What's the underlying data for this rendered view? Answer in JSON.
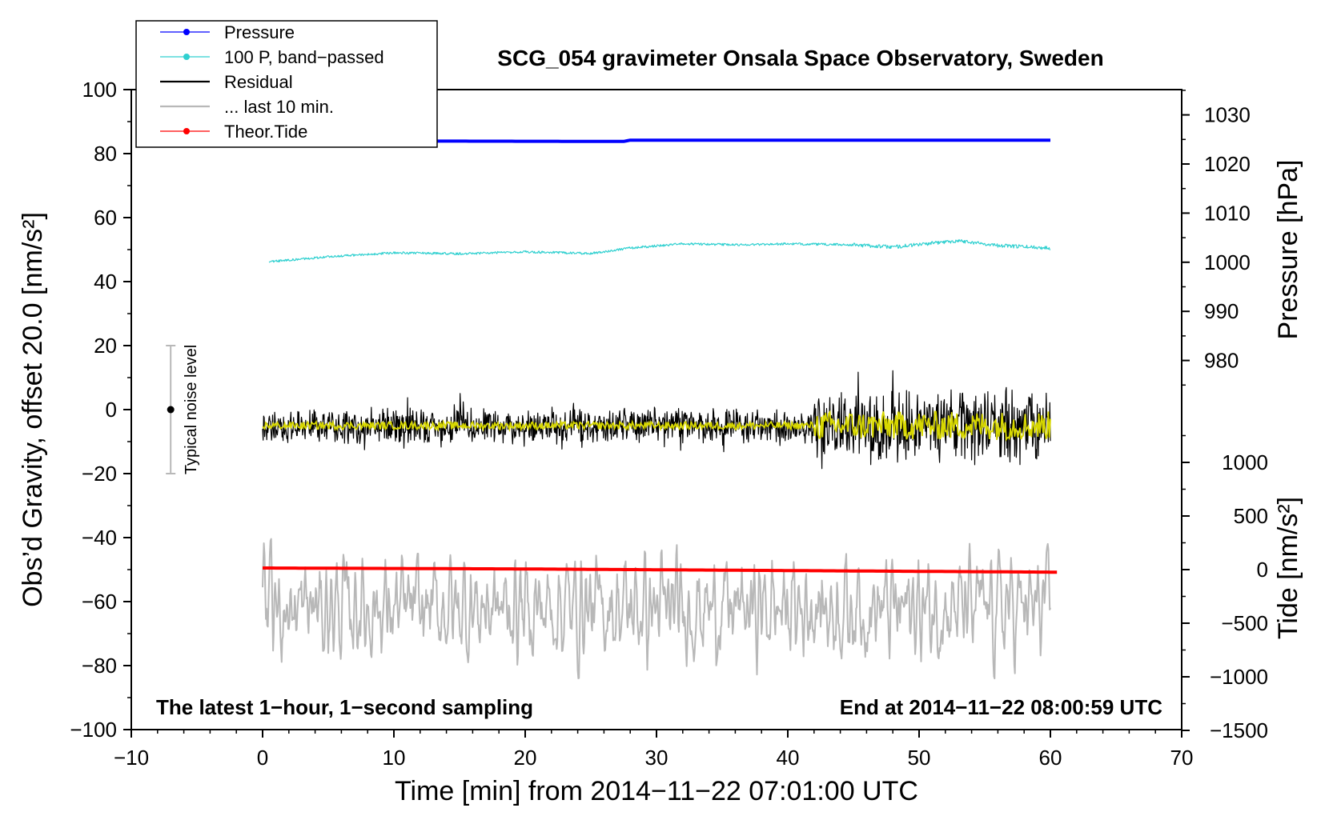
{
  "chart_data": {
    "type": "line",
    "title": "SCG_054 gravimeter Onsala Space Observatory, Sweden",
    "xlabel": "Time [min] from 2014−11−22 07:01:00 UTC",
    "ylabel_left": "Obs’d Gravity, offset 20.0 [nm/s²]",
    "ylabel_right_pressure": "Pressure [hPa]",
    "ylabel_right_tide": "Tide [nm/s²]",
    "xlim": [
      -10,
      70
    ],
    "ylim": [
      -100,
      100
    ],
    "x_ticks": [
      "−10",
      "0",
      "10",
      "20",
      "30",
      "40",
      "50",
      "60",
      "70"
    ],
    "y_ticks": [
      "−100",
      "−80",
      "−60",
      "−40",
      "−20",
      "0",
      "20",
      "40",
      "60",
      "80",
      "100"
    ],
    "pressure_ticks": [
      "980",
      "990",
      "1000",
      "1010",
      "1020",
      "1030"
    ],
    "tide_ticks": [
      "−1500",
      "−1000",
      "−500",
      "0",
      "500",
      "1000"
    ],
    "legend": [
      {
        "label": "Pressure",
        "color": "#0000ff"
      },
      {
        "label": "100 P, band−passed",
        "color": "#30d0d0"
      },
      {
        "label": "Residual",
        "color": "#000000"
      },
      {
        "label": "... last 10 min.",
        "color": "#b8b8b8"
      },
      {
        "label": "Theor.Tide",
        "color": "#ff0000"
      }
    ],
    "note_left": "The latest 1−hour, 1−second sampling",
    "note_right": "End at 2014−11−22 08:00:59 UTC",
    "noise_label": "Typical noise level",
    "noise_bar": {
      "x": -7,
      "center": 0,
      "low": -20,
      "high": 20
    },
    "series": [
      {
        "name": "Pressure",
        "color": "#0000ff",
        "x": [
          0,
          27.7,
          27.8,
          60
        ],
        "y": [
          84.0,
          83.8,
          84.2,
          84.2
        ]
      },
      {
        "name": "100 P, band−passed",
        "color": "#30d0d0",
        "x": [
          0.5,
          5,
          10,
          15,
          20,
          25,
          28,
          32,
          36,
          40,
          45,
          48,
          50,
          53,
          56,
          60
        ],
        "y": [
          46.2,
          47.8,
          49.0,
          48.7,
          49.3,
          48.8,
          50.5,
          51.8,
          51.5,
          51.8,
          51.5,
          50.8,
          51.6,
          52.8,
          51.3,
          50.5
        ]
      },
      {
        "name": "Residual",
        "color": "#000000",
        "x_range": [
          0,
          60
        ],
        "mean": -5,
        "amplitude_early": 6,
        "amplitude_late": 13
      },
      {
        "name": "... last 10 min.",
        "color": "#b8b8b8",
        "x_range": [
          0,
          60
        ],
        "mean": -62,
        "amplitude": 9
      },
      {
        "name": "Theor.Tide",
        "color": "#ff0000",
        "x": [
          0,
          20,
          40,
          60.5
        ],
        "y": [
          -49.5,
          -49.8,
          -50.3,
          -50.8
        ]
      }
    ]
  }
}
